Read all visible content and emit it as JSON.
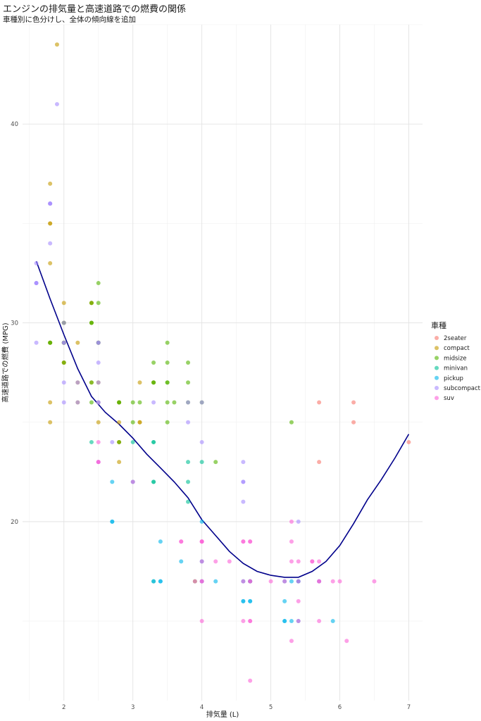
{
  "chart_data": {
    "type": "scatter",
    "title": "エンジンの排気量と高速道路での燃費の関係",
    "subtitle": "車種別に色分けし、全体の傾向線を追加",
    "xlabel": "排気量 (L)",
    "ylabel": "高速道路での燃費 (MPG)",
    "xlim": [
      1.4,
      7.2
    ],
    "ylim": [
      11,
      45
    ],
    "x_ticks": [
      2,
      3,
      4,
      5,
      6,
      7
    ],
    "y_ticks": [
      20,
      30,
      40
    ],
    "grid": true,
    "legend": {
      "title": "車種",
      "position": "right"
    },
    "series": [
      {
        "name": "2seater",
        "color": "#F8766D",
        "points": [
          [
            5.7,
            26
          ],
          [
            5.7,
            23
          ],
          [
            6.2,
            26
          ],
          [
            6.2,
            25
          ],
          [
            7.0,
            24
          ]
        ]
      },
      {
        "name": "compact",
        "color": "#C49A00",
        "points": [
          [
            1.8,
            29
          ],
          [
            1.8,
            29
          ],
          [
            2.0,
            31
          ],
          [
            2.0,
            30
          ],
          [
            2.8,
            26
          ],
          [
            2.8,
            26
          ],
          [
            3.1,
            27
          ],
          [
            1.8,
            26
          ],
          [
            1.8,
            25
          ],
          [
            2.0,
            28
          ],
          [
            2.0,
            28
          ],
          [
            2.8,
            24
          ],
          [
            2.8,
            25
          ],
          [
            3.1,
            25
          ],
          [
            3.1,
            25
          ],
          [
            2.4,
            27
          ],
          [
            2.4,
            30
          ],
          [
            2.4,
            31
          ],
          [
            2.2,
            29
          ],
          [
            2.2,
            27
          ],
          [
            2.4,
            31
          ],
          [
            2.5,
            27
          ],
          [
            2.5,
            25
          ],
          [
            2.2,
            26
          ],
          [
            1.8,
            35
          ],
          [
            1.8,
            37
          ],
          [
            1.8,
            35
          ],
          [
            2.0,
            29
          ],
          [
            2.0,
            29
          ],
          [
            2.5,
            29
          ],
          [
            2.5,
            26
          ],
          [
            2.8,
            23
          ],
          [
            1.8,
            33
          ],
          [
            1.9,
            44
          ],
          [
            2.0,
            29
          ],
          [
            2.8,
            24
          ],
          [
            3.3,
            27
          ]
        ]
      },
      {
        "name": "midsize",
        "color": "#53B400",
        "points": [
          [
            1.8,
            29
          ],
          [
            2.0,
            29
          ],
          [
            2.8,
            26
          ],
          [
            3.1,
            26
          ],
          [
            2.4,
            27
          ],
          [
            2.4,
            30
          ],
          [
            2.5,
            32
          ],
          [
            2.5,
            31
          ],
          [
            3.5,
            29
          ],
          [
            3.5,
            28
          ],
          [
            3.0,
            26
          ],
          [
            3.3,
            28
          ],
          [
            3.8,
            28
          ],
          [
            3.8,
            27
          ],
          [
            4.0,
            26
          ],
          [
            2.4,
            31
          ],
          [
            3.0,
            25
          ],
          [
            3.5,
            27
          ],
          [
            2.5,
            29
          ],
          [
            2.5,
            29
          ],
          [
            3.3,
            27
          ],
          [
            3.5,
            26
          ],
          [
            3.8,
            26
          ],
          [
            4.2,
            23
          ],
          [
            5.3,
            25
          ],
          [
            2.4,
            26
          ],
          [
            3.5,
            25
          ],
          [
            3.6,
            26
          ],
          [
            3.9,
            17
          ],
          [
            4.7,
            17
          ],
          [
            2.0,
            29
          ],
          [
            2.0,
            28
          ],
          [
            3.3,
            27
          ],
          [
            3.5,
            27
          ],
          [
            2.4,
            30
          ],
          [
            1.8,
            29
          ],
          [
            2.8,
            26
          ],
          [
            2.0,
            30
          ],
          [
            2.8,
            24
          ]
        ]
      },
      {
        "name": "minivan",
        "color": "#00C094",
        "points": [
          [
            2.4,
            24
          ],
          [
            3.0,
            24
          ],
          [
            3.3,
            22
          ],
          [
            3.3,
            22
          ],
          [
            3.3,
            24
          ],
          [
            3.3,
            24
          ],
          [
            3.3,
            17
          ],
          [
            3.8,
            22
          ],
          [
            3.8,
            21
          ],
          [
            3.8,
            23
          ],
          [
            4.0,
            23
          ]
        ]
      },
      {
        "name": "pickup",
        "color": "#00B6EB",
        "points": [
          [
            2.7,
            20
          ],
          [
            2.7,
            20
          ],
          [
            2.7,
            22
          ],
          [
            3.0,
            22
          ],
          [
            3.4,
            19
          ],
          [
            3.4,
            17
          ],
          [
            3.7,
            18
          ],
          [
            4.0,
            18
          ],
          [
            4.0,
            20
          ],
          [
            4.2,
            17
          ],
          [
            4.6,
            17
          ],
          [
            4.6,
            16
          ],
          [
            4.7,
            17
          ],
          [
            4.7,
            16
          ],
          [
            5.2,
            15
          ],
          [
            5.2,
            15
          ],
          [
            5.2,
            17
          ],
          [
            5.2,
            16
          ],
          [
            5.4,
            17
          ],
          [
            5.4,
            15
          ],
          [
            5.9,
            15
          ],
          [
            4.7,
            17
          ],
          [
            5.7,
            17
          ],
          [
            5.3,
            17
          ],
          [
            3.3,
            17
          ],
          [
            4.6,
            16
          ],
          [
            5.3,
            15
          ],
          [
            4.7,
            16
          ],
          [
            5.4,
            17
          ],
          [
            4.0,
            17
          ],
          [
            3.4,
            17
          ]
        ]
      },
      {
        "name": "subcompact",
        "color": "#A58AFF",
        "points": [
          [
            3.8,
            26
          ],
          [
            3.8,
            25
          ],
          [
            4.0,
            26
          ],
          [
            4.0,
            24
          ],
          [
            4.6,
            21
          ],
          [
            4.6,
            22
          ],
          [
            4.6,
            23
          ],
          [
            4.6,
            22
          ],
          [
            5.4,
            20
          ],
          [
            1.6,
            33
          ],
          [
            1.6,
            32
          ],
          [
            1.6,
            32
          ],
          [
            1.6,
            29
          ],
          [
            1.6,
            32
          ],
          [
            1.8,
            34
          ],
          [
            1.8,
            36
          ],
          [
            1.8,
            36
          ],
          [
            2.0,
            29
          ],
          [
            2.0,
            26
          ],
          [
            2.0,
            27
          ],
          [
            2.0,
            30
          ],
          [
            2.5,
            26
          ],
          [
            2.5,
            23
          ],
          [
            2.2,
            26
          ],
          [
            2.5,
            29
          ],
          [
            2.5,
            28
          ],
          [
            2.7,
            24
          ],
          [
            1.9,
            41
          ],
          [
            2.0,
            29
          ],
          [
            2.5,
            27
          ],
          [
            3.3,
            26
          ],
          [
            2.5,
            26
          ],
          [
            2.2,
            27
          ],
          [
            2.5,
            29
          ],
          [
            1.8,
            36
          ]
        ]
      },
      {
        "name": "suv",
        "color": "#FB61D7",
        "points": [
          [
            5.7,
            17
          ],
          [
            5.3,
            20
          ],
          [
            5.3,
            19
          ],
          [
            5.3,
            14
          ],
          [
            5.7,
            18
          ],
          [
            6.5,
            17
          ],
          [
            3.7,
            19
          ],
          [
            4.7,
            17
          ],
          [
            4.7,
            12
          ],
          [
            5.2,
            17
          ],
          [
            5.7,
            15
          ],
          [
            5.9,
            17
          ],
          [
            4.7,
            17
          ],
          [
            4.7,
            15
          ],
          [
            4.0,
            18
          ],
          [
            4.2,
            18
          ],
          [
            4.4,
            18
          ],
          [
            4.6,
            17
          ],
          [
            5.4,
            18
          ],
          [
            5.4,
            17
          ],
          [
            5.4,
            15
          ],
          [
            4.0,
            17
          ],
          [
            4.0,
            19
          ],
          [
            4.0,
            19
          ],
          [
            4.6,
            19
          ],
          [
            5.0,
            17
          ],
          [
            6.1,
            14
          ],
          [
            5.4,
            16
          ],
          [
            3.0,
            22
          ],
          [
            3.7,
            19
          ],
          [
            3.9,
            17
          ],
          [
            4.7,
            19
          ],
          [
            4.0,
            15
          ],
          [
            4.6,
            15
          ],
          [
            5.6,
            18
          ],
          [
            2.5,
            23
          ],
          [
            2.5,
            24
          ],
          [
            2.5,
            23
          ],
          [
            4.0,
            17
          ],
          [
            4.7,
            15
          ],
          [
            4.0,
            19
          ],
          [
            5.3,
            18
          ],
          [
            5.7,
            17
          ],
          [
            6.0,
            17
          ],
          [
            4.6,
            19
          ],
          [
            4.7,
            19
          ],
          [
            5.6,
            18
          ]
        ]
      }
    ],
    "trend_line": {
      "color": "#00008B",
      "points": [
        [
          1.6,
          33.1
        ],
        [
          1.8,
          31.2
        ],
        [
          2.0,
          29.4
        ],
        [
          2.2,
          27.7
        ],
        [
          2.4,
          26.3
        ],
        [
          2.6,
          25.5
        ],
        [
          2.8,
          24.9
        ],
        [
          3.0,
          24.2
        ],
        [
          3.2,
          23.4
        ],
        [
          3.4,
          22.7
        ],
        [
          3.6,
          22.0
        ],
        [
          3.8,
          21.2
        ],
        [
          4.0,
          20.1
        ],
        [
          4.2,
          19.3
        ],
        [
          4.4,
          18.5
        ],
        [
          4.6,
          17.9
        ],
        [
          4.8,
          17.5
        ],
        [
          5.0,
          17.3
        ],
        [
          5.2,
          17.2
        ],
        [
          5.4,
          17.2
        ],
        [
          5.6,
          17.5
        ],
        [
          5.8,
          18.0
        ],
        [
          6.0,
          18.8
        ],
        [
          6.2,
          19.9
        ],
        [
          6.4,
          21.1
        ],
        [
          6.6,
          22.1
        ],
        [
          6.8,
          23.2
        ],
        [
          7.0,
          24.4
        ]
      ]
    }
  }
}
